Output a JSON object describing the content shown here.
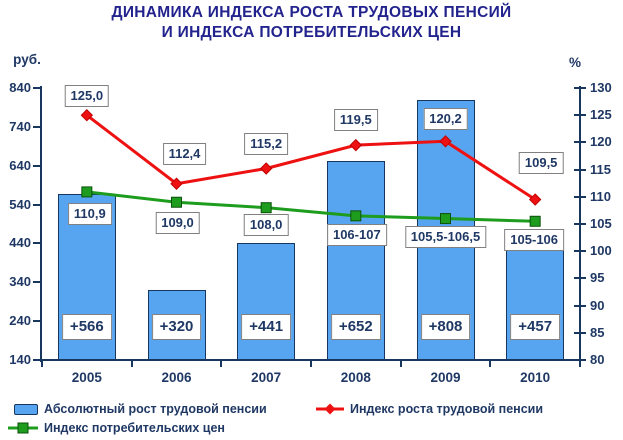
{
  "chart_data": {
    "type": "combo (bar + 2 lines, dual axis)",
    "title": "ДИНАМИКА ИНДЕКСА РОСТА ТРУДОВЫХ ПЕНСИЙ И ИНДЕКСА ПОТРЕБИТЕЛЬСКИХ ЦЕН",
    "title_lines": [
      "ДИНАМИКА ИНДЕКСА РОСТА ТРУДОВЫХ ПЕНСИЙ",
      "И ИНДЕКСА ПОТРЕБИТЕЛЬСКИХ ЦЕН"
    ],
    "categories": [
      "2005",
      "2006",
      "2007",
      "2008",
      "2009",
      "2010"
    ],
    "left_axis": {
      "label": "руб.",
      "min": 140,
      "max": 840,
      "tick_step": 100
    },
    "right_axis": {
      "label": "%",
      "min": 80,
      "max": 130,
      "tick_step": 5
    },
    "grid": false,
    "legend_position": "bottom",
    "series": [
      {
        "name": "Абсолютный рост трудовой пенсии",
        "type": "bar",
        "axis": "left",
        "color": "#57A5F0",
        "border_color": "#17375E",
        "values": [
          566,
          320,
          441,
          652,
          808,
          457
        ],
        "labels": [
          "+566",
          "+320",
          "+441",
          "+652",
          "+808",
          "+457"
        ]
      },
      {
        "name": "Индекс роста трудовой пенсии",
        "type": "line",
        "marker": "diamond",
        "axis": "right",
        "color": "#EE1111",
        "values": [
          125.0,
          112.4,
          115.2,
          119.5,
          120.2,
          109.5
        ],
        "labels": [
          "125,0",
          "112,4",
          "115,2",
          "119,5",
          "120,2",
          "109,5"
        ]
      },
      {
        "name": "Индекс потребительских цен",
        "type": "line",
        "marker": "square",
        "axis": "right",
        "color": "#1E9C1E",
        "values": [
          110.9,
          109.0,
          108.0,
          106.5,
          106.0,
          105.5
        ],
        "labels": [
          "110,9",
          "109,0",
          "108,0",
          "106-107",
          "105,5-106,5",
          "105-106"
        ]
      }
    ],
    "colors": {
      "title_text": "#23238E",
      "axis_text": "#1F3864",
      "axis_line": "#17375E",
      "label_text": "#1F3864",
      "label_box_border": "#808080",
      "background": "#FFFFFF"
    }
  }
}
